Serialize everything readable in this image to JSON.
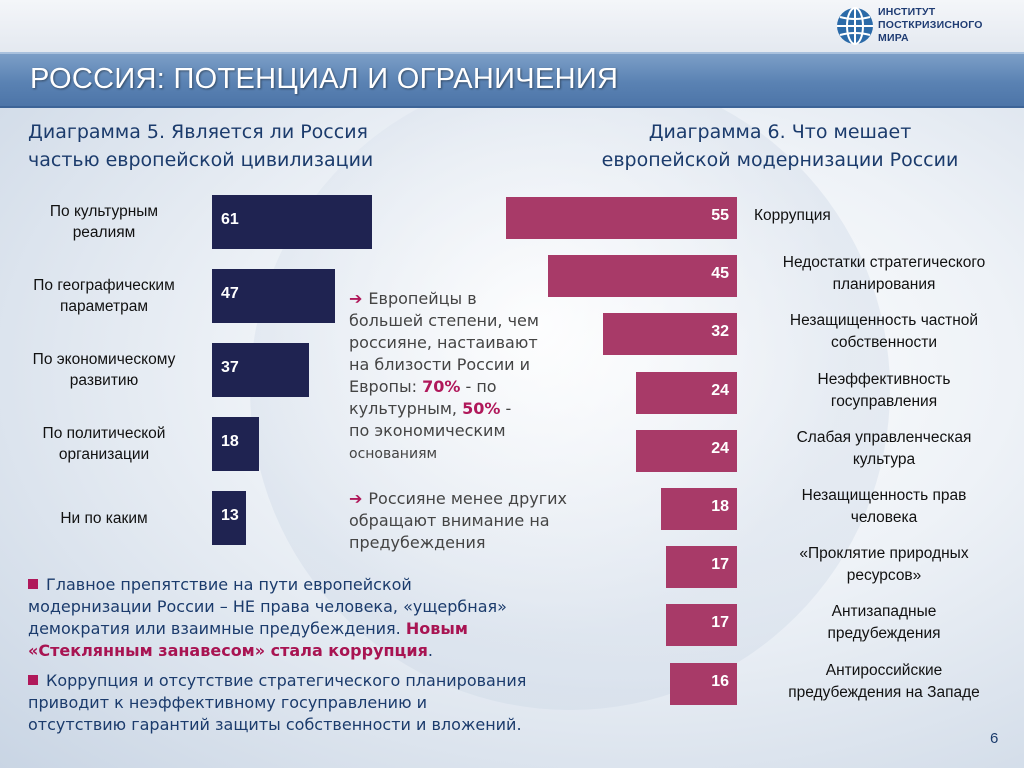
{
  "header": {
    "logo_lines": [
      "ИНСТИТУТ",
      "ПОСТКРИЗИСНОГО",
      "МИРА"
    ],
    "title": "РОССИЯ: ПОТЕНЦИАЛ И ОГРАНИЧЕНИЯ"
  },
  "chart_data": [
    {
      "type": "bar",
      "orientation": "horizontal",
      "title": "Диаграмма 5. Является ли Россия\nчастью европейской цивилизации",
      "categories": [
        "По культурным\nреалиям",
        "По географическим\nпараметрам",
        "По экономическому\nразвитию",
        "По политической\nорганизации",
        "Ни по каким"
      ],
      "values": [
        61,
        47,
        37,
        18,
        13
      ],
      "bar_color": "#1f2351"
    },
    {
      "type": "bar",
      "orientation": "horizontal",
      "title": "Диаграмма 6. Что мешает\nевропейской модернизации России",
      "categories": [
        "Коррупция",
        "Недостатки стратегического\nпланирования",
        "Незащищенность частной\nсобственности",
        "Неэффективность\nгосуправления",
        "Слабая управленческая\nкультура",
        "Незащищенность прав\nчеловека",
        "«Проклятие природных\nресурсов»",
        "Антизападные\nпредубеждения",
        "Антироссийские\nпредубеждения на Западе"
      ],
      "values": [
        55,
        45,
        32,
        24,
        24,
        18,
        17,
        17,
        16
      ],
      "bar_color": "#a83a68"
    }
  ],
  "notes": {
    "note1": {
      "arrow": "➔",
      "line1": "Европейцы в",
      "line2": "большей степени, чем",
      "line3": "россияне, настаивают",
      "line4": "на близости России и",
      "line5_pre": "Европы:",
      "pct1": "70%",
      "line5_post": "- по",
      "line6_pre": "культурным,",
      "pct2": "50%",
      "line6_post": "-",
      "line7": "по экономическим",
      "line8": "основаниям"
    },
    "note2": {
      "arrow": "➔",
      "line1": "Россияне менее других",
      "line2": "обращают внимание на",
      "line3": "предубеждения"
    }
  },
  "bullets": {
    "b1_line1": "Главное препятствие на пути европейской",
    "b1_line2": "модернизации России – НЕ права человека, «ущербная»",
    "b1_line3_pre": "демократия или взаимные предубеждения.",
    "b1_bold1": "Новым",
    "b1_bold2": "«Стеклянным занавесом» стала коррупция",
    "b1_end": ".",
    "b2_line1": "Коррупция и отсутствие стратегического планирования",
    "b2_line2": "приводит  к неэффективному госуправлению и",
    "b2_line3": "отсутствию гарантий защиты собственности и вложений."
  },
  "page_number": "6"
}
